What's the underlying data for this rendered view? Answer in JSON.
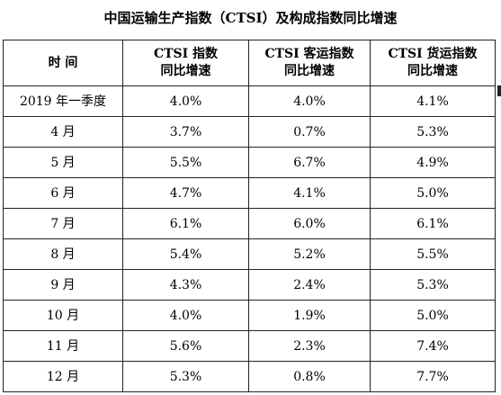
{
  "title": "中国运输生产指数（CTSI）及构成指数同比增速",
  "headers": [
    {
      "line1": "时 间",
      "line2": ""
    },
    {
      "line1": "CTSI 指数",
      "line2": "同比增速"
    },
    {
      "line1": "CTSI 客运指数",
      "line2": "同比增速"
    },
    {
      "line1": "CTSI 货运指数",
      "line2": "同比增速"
    }
  ],
  "rows": [
    [
      "2019 年一季度",
      "4.0%",
      "4.0%",
      "4.1%"
    ],
    [
      "4 月",
      "3.7%",
      "0.7%",
      "5.3%"
    ],
    [
      "5 月",
      "5.5%",
      "6.7%",
      "4.9%"
    ],
    [
      "6 月",
      "4.7%",
      "4.1%",
      "5.0%"
    ],
    [
      "7 月",
      "6.1%",
      "6.0%",
      "6.1%"
    ],
    [
      "8 月",
      "5.4%",
      "5.2%",
      "5.5%"
    ],
    [
      "9 月",
      "4.3%",
      "2.4%",
      "5.3%"
    ],
    [
      "10 月",
      "4.0%",
      "1.9%",
      "5.0%"
    ],
    [
      "11 月",
      "5.6%",
      "2.3%",
      "7.4%"
    ],
    [
      "12 月",
      "5.3%",
      "0.8%",
      "7.7%"
    ]
  ]
}
